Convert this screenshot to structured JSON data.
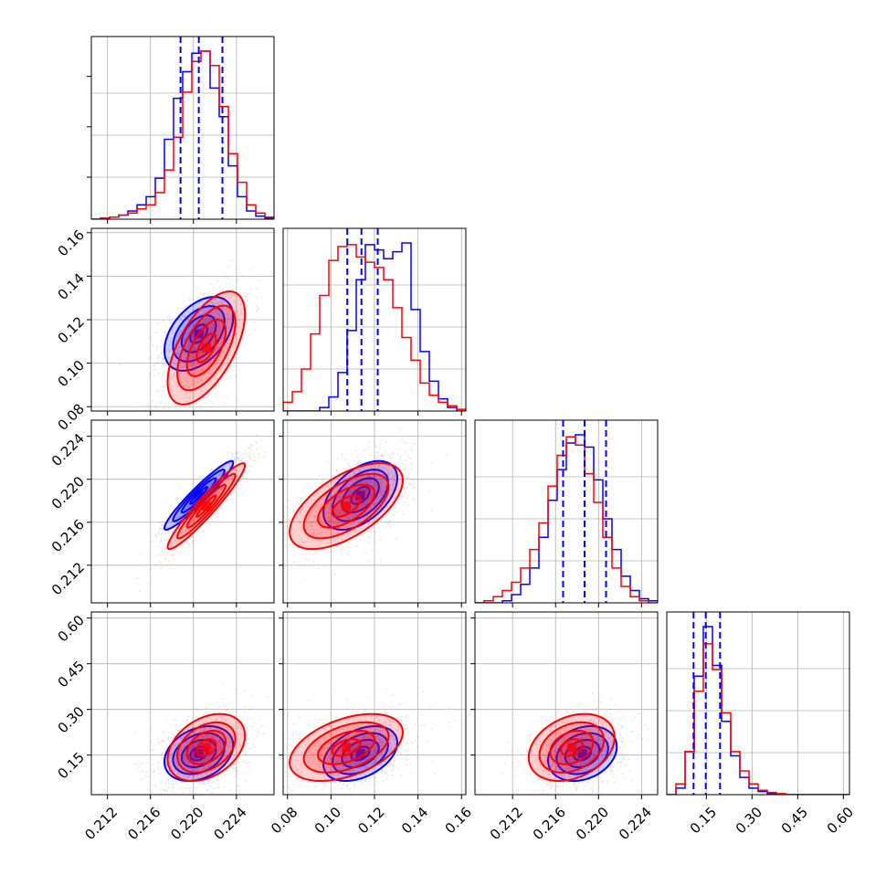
{
  "colors": {
    "blue": "#0000ff",
    "red": "#ff0000",
    "grid": "#b0b0b0",
    "frame": "#000000"
  },
  "chart_data": {
    "type": "corner",
    "grid": true,
    "legend": "none",
    "parameters": [
      {
        "range": [
          0.2105,
          0.2275
        ],
        "ticks": [
          0.212,
          0.216,
          0.22,
          0.224
        ],
        "tick_labels": [
          "0.212",
          "0.216",
          "0.220",
          "0.224"
        ]
      },
      {
        "range": [
          0.078,
          0.162
        ],
        "ticks": [
          0.08,
          0.1,
          0.12,
          0.14,
          0.16
        ],
        "tick_labels": [
          "0.08",
          "0.10",
          "0.12",
          "0.14",
          "0.16"
        ]
      },
      {
        "range": [
          0.2085,
          0.2255
        ],
        "ticks": [
          0.212,
          0.216,
          0.22,
          0.224
        ],
        "tick_labels": [
          "0.212",
          "0.216",
          "0.220",
          "0.224"
        ]
      },
      {
        "range": [
          0.02,
          0.62
        ],
        "ticks": [
          0.15,
          0.3,
          0.45,
          0.6
        ],
        "tick_labels": [
          "0.15",
          "0.30",
          "0.45",
          "0.60"
        ]
      }
    ],
    "series": [
      {
        "color": "#0000ff",
        "means": [
          0.2205,
          0.1135,
          0.2185,
          0.155
        ],
        "sigmas": [
          0.0016,
          0.0085,
          0.0016,
          0.045
        ],
        "quantiles": [
          [
            0.2188,
            0.2205,
            0.2227
          ],
          [
            0.1075,
            0.114,
            0.1215
          ],
          [
            0.2167,
            0.2187,
            0.2207
          ],
          [
            0.108,
            0.148,
            0.195
          ]
        ],
        "correlations": [
          [
            0,
            1,
            0.45
          ],
          [
            0,
            2,
            0.95
          ],
          [
            0,
            3,
            0.3
          ],
          [
            1,
            2,
            0.5
          ],
          [
            1,
            3,
            0.4
          ],
          [
            2,
            3,
            0.25
          ]
        ],
        "histograms": [
          {
            "edges": [
              0.2105,
              0.2275
            ],
            "counts": [
              0,
              0.5,
              1,
              2,
              4,
              7,
              11,
              20,
              39,
              59,
              72,
              81,
              82,
              64,
              50,
              26,
              11,
              4,
              1.5,
              0.5
            ]
          },
          {
            "edges": [
              0.078,
              0.162
            ],
            "counts": [
              0,
              0,
              0,
              0,
              2,
              8,
              22,
              46,
              75,
              95,
              92,
              87,
              91,
              96,
              58,
              34,
              17,
              7,
              2,
              0
            ]
          },
          {
            "edges": [
              0.2085,
              0.2255
            ],
            "counts": [
              0,
              0,
              0,
              1,
              4,
              9,
              17,
              32,
              50,
              65,
              78,
              82,
              76,
              60,
              41,
              26,
              13,
              6,
              2,
              1
            ]
          },
          {
            "edges": [
              0.02,
              0.62
            ],
            "counts": [
              0,
              3,
              20,
              55,
              78,
              60,
              34,
              18,
              8,
              3,
              1.5,
              0.5,
              0,
              0,
              0,
              0,
              0,
              0,
              0,
              0
            ]
          }
        ]
      },
      {
        "color": "#ff0000",
        "means": [
          0.2212,
          0.107,
          0.2175,
          0.175
        ],
        "sigmas": [
          0.0018,
          0.013,
          0.002,
          0.055
        ],
        "quantiles": [
          [
            0.2188,
            0.2205,
            0.2227
          ],
          [
            0.1075,
            0.114,
            0.1215
          ],
          [
            0.2167,
            0.2187,
            0.2207
          ],
          [
            0.108,
            0.148,
            0.195
          ]
        ],
        "correlations": [
          [
            0,
            1,
            0.6
          ],
          [
            0,
            2,
            0.95
          ],
          [
            0,
            3,
            0.35
          ],
          [
            1,
            2,
            0.6
          ],
          [
            1,
            3,
            0.45
          ],
          [
            2,
            3,
            0.3
          ]
        ],
        "histograms": [
          {
            "edges": [
              0.2105,
              0.2275
            ],
            "counts": [
              0,
              0.5,
              1,
              2,
              3,
              5,
              7,
              13,
              24,
              40,
              62,
              77,
              82,
              75,
              55,
              32,
              18,
              7,
              3,
              1
            ]
          },
          {
            "edges": [
              0.078,
              0.162
            ],
            "counts": [
              5,
              11,
              24,
              44,
              66,
              86,
              94,
              95,
              88,
              85,
              82,
              75,
              59,
              42,
              29,
              16,
              9,
              5,
              3,
              1
            ]
          },
          {
            "edges": [
              0.2085,
              0.2255
            ],
            "counts": [
              0,
              1,
              3,
              6,
              10,
              17,
              26,
              39,
              57,
              72,
              81,
              77,
              63,
              49,
              32,
              17,
              8,
              3,
              1,
              0
            ]
          },
          {
            "edges": [
              0.02,
              0.62
            ],
            "counts": [
              0,
              5,
              20,
              48,
              70,
              58,
              38,
              20,
              11,
              5,
              2,
              1,
              0.5,
              0,
              0,
              0,
              0,
              0,
              0,
              0
            ]
          }
        ]
      }
    ]
  }
}
